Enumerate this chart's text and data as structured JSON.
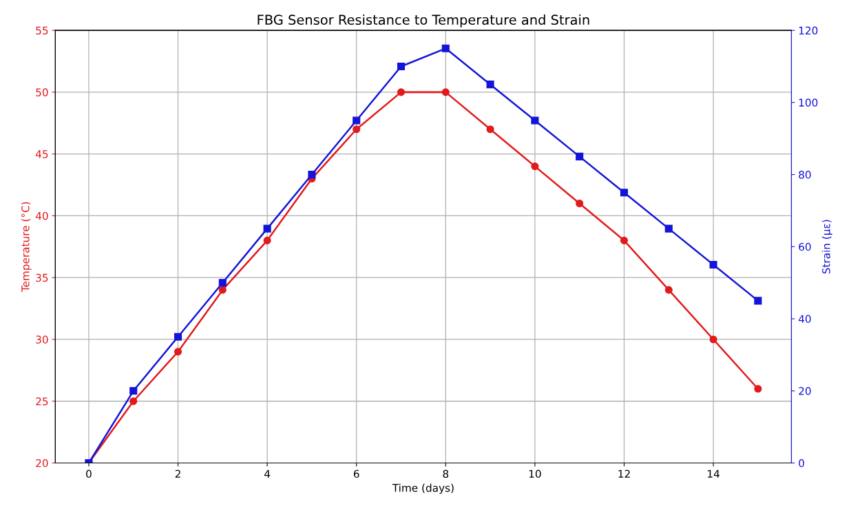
{
  "chart_data": {
    "type": "line",
    "title": "FBG Sensor Resistance to Temperature and Strain",
    "xlabel": "Time (days)",
    "ylabel": "Temperature (°C)",
    "y2label": "Strain (με)",
    "x": [
      0,
      1,
      2,
      3,
      4,
      5,
      6,
      7,
      8,
      9,
      10,
      11,
      12,
      13,
      14,
      15
    ],
    "series": [
      {
        "color": "#e31a1c",
        "marker": "circle",
        "values": [
          20,
          25,
          29,
          34,
          38,
          43,
          47,
          50,
          50,
          47,
          44,
          41,
          38,
          34,
          30,
          26
        ]
      },
      {
        "color": "#1414d8",
        "marker": "square",
        "axis": "y2",
        "values": [
          0,
          20,
          35,
          50,
          65,
          80,
          95,
          110,
          115,
          105,
          95,
          85,
          75,
          65,
          55,
          45
        ]
      }
    ],
    "xlim": [
      -0.75,
      15.75
    ],
    "xticks": [
      0,
      2,
      4,
      6,
      8,
      10,
      12,
      14
    ],
    "ylim": [
      20,
      55
    ],
    "yticks": [
      20,
      25,
      30,
      35,
      40,
      45,
      50,
      55
    ],
    "y2lim": [
      0,
      120
    ],
    "y2ticks": [
      0,
      20,
      40,
      60,
      80,
      100,
      120
    ],
    "grid": true,
    "line_style": "solid"
  }
}
